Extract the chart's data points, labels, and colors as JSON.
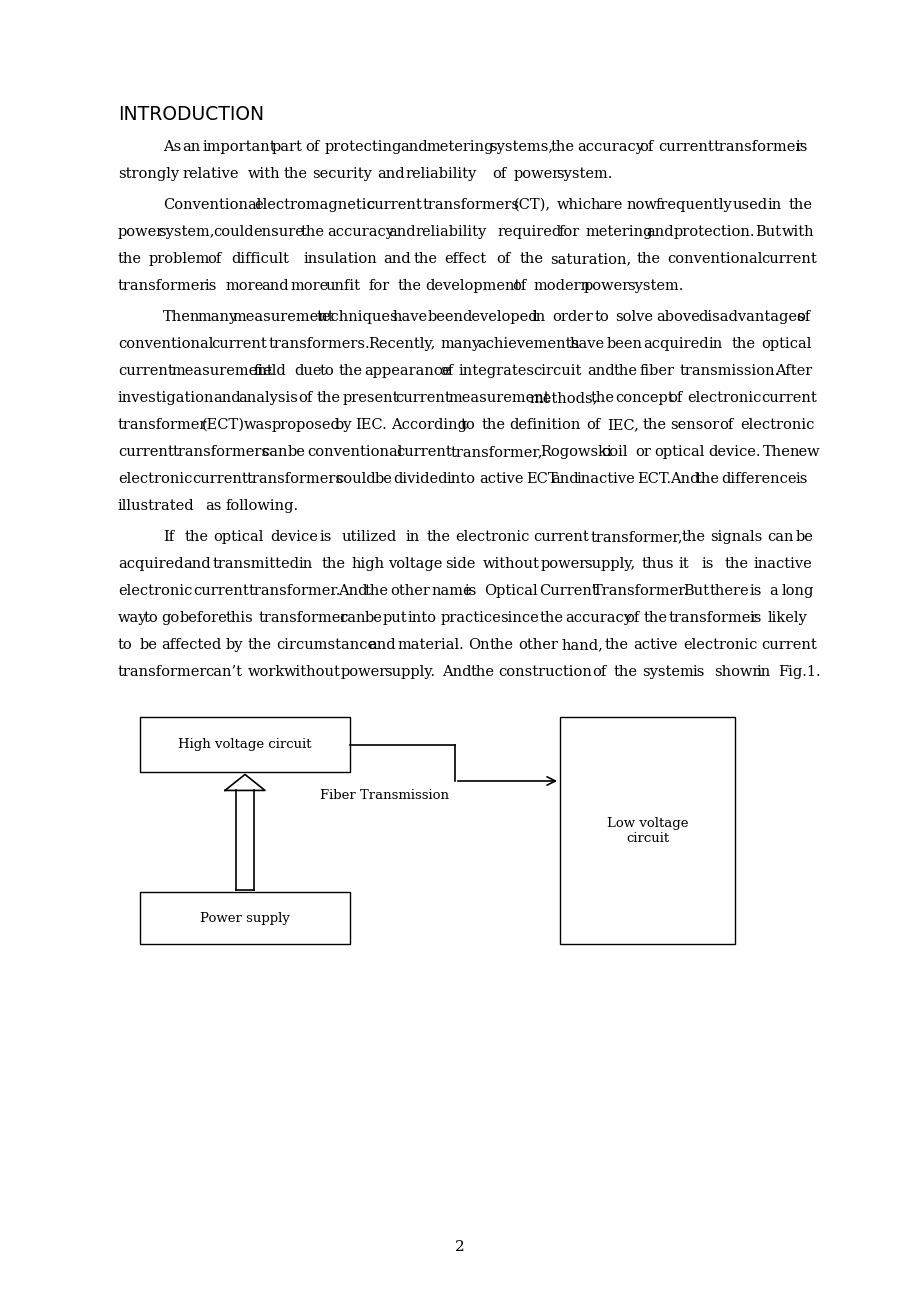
{
  "bg_color": "#ffffff",
  "text_color": "#000000",
  "page_width": 9.2,
  "page_height": 13.02,
  "heading": "INTRODUCTION",
  "body_font_size": 10.5,
  "paragraphs": [
    {
      "indent": true,
      "text": "As an important part of protecting and metering systems, the accuracy of current transformer is strongly relative with the security and reliability of power system."
    },
    {
      "indent": true,
      "text": "Conventional electromagnetic current transformers (CT), which are now frequently used in the power system, could ensure the accuracy and reliability required for metering and protection. But with the problem of difficult insulation and the effect of the saturation, the conventional current transformer is more and more unfit for the development of modern power system."
    },
    {
      "indent": true,
      "text": "Then many measurement techniques have been developed in order to solve above disadvantages of conventional current transformers. Recently, many achievements have been acquired in the optical current measurement field due to the appearance of integrates circuit and the fiber transmission. After investigation and analysis of the present current measurement methods, the concept of electronic current transformer (ECT) was proposed by IEC. According to the definition of IEC, the sensor of electronic current transformers can be conventional current transformer, Rogowski coil or optical device. The new electronic current transformers could be divided into active ECT and inactive ECT. And the difference is illustrated as following."
    },
    {
      "indent": true,
      "text": "If the optical device is utilized in the electronic current transformer, the signals can be acquired and transmitted in the high voltage side without power supply, thus it is the inactive electronic current transformer. And the other name is Optical Current Transformer. But there is a long way to go before this transformer can be put into practice since the accuracy of the transformer is likely to be affected by the circumstance and material. On the other hand, the active electronic current transformer can’t work without power supply. And the construction of the system is shown in Fig.1."
    }
  ],
  "page_number": "2"
}
